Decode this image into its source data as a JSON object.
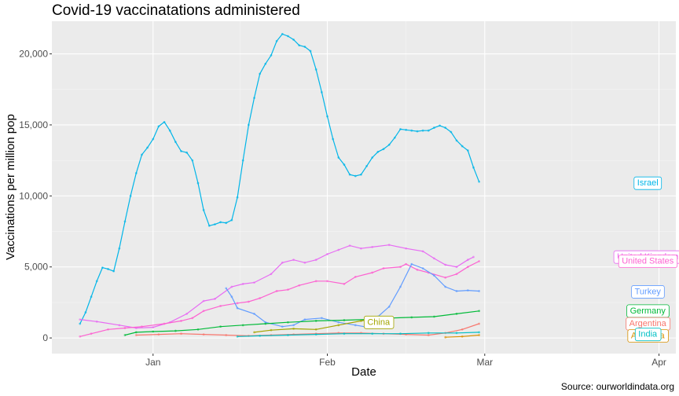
{
  "chart_data": {
    "type": "line",
    "title": "Covid-19 vaccinatations administered",
    "xlabel": "Date",
    "ylabel": "Vaccinations per million pop",
    "caption": "Source: ourworldindata.org",
    "ylim": [
      -1100,
      22300
    ],
    "xlim": [
      "2020-12-14",
      "2021-04-04"
    ],
    "x_ticks": [
      {
        "date": "2021-01-01",
        "label": "Jan"
      },
      {
        "date": "2021-02-01",
        "label": "Feb"
      },
      {
        "date": "2021-03-01",
        "label": "Mar"
      },
      {
        "date": "2021-04-01",
        "label": "Apr"
      }
    ],
    "y_ticks": [
      {
        "value": 0,
        "label": "0"
      },
      {
        "value": 5000,
        "label": "5,000"
      },
      {
        "value": 10000,
        "label": "10,000"
      },
      {
        "value": 15000,
        "label": "15,000"
      },
      {
        "value": 20000,
        "label": "20,000"
      }
    ],
    "grid": true,
    "legend": "none (direct labels)",
    "series": [
      {
        "name": "Israel",
        "color": "#00b5e8",
        "label_y": 10950,
        "points": [
          [
            "2020-12-19",
            1000
          ],
          [
            "2020-12-20",
            1800
          ],
          [
            "2020-12-21",
            2900
          ],
          [
            "2020-12-22",
            4000
          ],
          [
            "2020-12-23",
            4950
          ],
          [
            "2020-12-24",
            4850
          ],
          [
            "2020-12-25",
            4700
          ],
          [
            "2020-12-26",
            6300
          ],
          [
            "2020-12-27",
            8200
          ],
          [
            "2020-12-28",
            10000
          ],
          [
            "2020-12-29",
            11600
          ],
          [
            "2020-12-30",
            12900
          ],
          [
            "2020-12-31",
            13400
          ],
          [
            "2021-01-01",
            14000
          ],
          [
            "2021-01-02",
            14900
          ],
          [
            "2021-01-03",
            15200
          ],
          [
            "2021-01-04",
            14600
          ],
          [
            "2021-01-05",
            13800
          ],
          [
            "2021-01-06",
            13150
          ],
          [
            "2021-01-07",
            13050
          ],
          [
            "2021-01-08",
            12500
          ],
          [
            "2021-01-09",
            10900
          ],
          [
            "2021-01-10",
            9000
          ],
          [
            "2021-01-11",
            7900
          ],
          [
            "2021-01-12",
            8000
          ],
          [
            "2021-01-13",
            8150
          ],
          [
            "2021-01-14",
            8100
          ],
          [
            "2021-01-15",
            8300
          ],
          [
            "2021-01-16",
            9900
          ],
          [
            "2021-01-17",
            12500
          ],
          [
            "2021-01-18",
            15000
          ],
          [
            "2021-01-19",
            16900
          ],
          [
            "2021-01-20",
            18600
          ],
          [
            "2021-01-21",
            19300
          ],
          [
            "2021-01-22",
            19900
          ],
          [
            "2021-01-23",
            20900
          ],
          [
            "2021-01-24",
            21400
          ],
          [
            "2021-01-25",
            21250
          ],
          [
            "2021-01-26",
            21000
          ],
          [
            "2021-01-27",
            20600
          ],
          [
            "2021-01-28",
            20500
          ],
          [
            "2021-01-29",
            20200
          ],
          [
            "2021-01-30",
            18900
          ],
          [
            "2021-01-31",
            17300
          ],
          [
            "2021-02-01",
            15600
          ],
          [
            "2021-02-02",
            14000
          ],
          [
            "2021-02-03",
            12700
          ],
          [
            "2021-02-04",
            12200
          ],
          [
            "2021-02-05",
            11500
          ],
          [
            "2021-02-06",
            11400
          ],
          [
            "2021-02-07",
            11500
          ],
          [
            "2021-02-08",
            12100
          ],
          [
            "2021-02-09",
            12700
          ],
          [
            "2021-02-10",
            13100
          ],
          [
            "2021-02-11",
            13300
          ],
          [
            "2021-02-12",
            13600
          ],
          [
            "2021-02-13",
            14100
          ],
          [
            "2021-02-14",
            14700
          ],
          [
            "2021-02-15",
            14650
          ],
          [
            "2021-02-16",
            14600
          ],
          [
            "2021-02-17",
            14550
          ],
          [
            "2021-02-18",
            14600
          ],
          [
            "2021-02-19",
            14600
          ],
          [
            "2021-02-20",
            14800
          ],
          [
            "2021-02-21",
            14950
          ],
          [
            "2021-02-22",
            14800
          ],
          [
            "2021-02-23",
            14500
          ],
          [
            "2021-02-24",
            13900
          ],
          [
            "2021-02-25",
            13500
          ],
          [
            "2021-02-26",
            13200
          ],
          [
            "2021-02-27",
            12000
          ],
          [
            "2021-02-28",
            11000
          ]
        ]
      },
      {
        "name": "United Kingdom",
        "color": "#e76bf3",
        "label_y": 5750,
        "points": [
          [
            "2020-12-19",
            1300
          ],
          [
            "2020-12-22",
            1150
          ],
          [
            "2020-12-26",
            900
          ],
          [
            "2020-12-29",
            700
          ],
          [
            "2021-01-01",
            750
          ],
          [
            "2021-01-04",
            1100
          ],
          [
            "2021-01-07",
            1700
          ],
          [
            "2021-01-10",
            2600
          ],
          [
            "2021-01-12",
            2750
          ],
          [
            "2021-01-15",
            3600
          ],
          [
            "2021-01-17",
            3800
          ],
          [
            "2021-01-19",
            3900
          ],
          [
            "2021-01-22",
            4500
          ],
          [
            "2021-01-24",
            5300
          ],
          [
            "2021-01-26",
            5500
          ],
          [
            "2021-01-28",
            5300
          ],
          [
            "2021-01-30",
            5500
          ],
          [
            "2021-02-01",
            5900
          ],
          [
            "2021-02-03",
            6200
          ],
          [
            "2021-02-05",
            6500
          ],
          [
            "2021-02-07",
            6300
          ],
          [
            "2021-02-09",
            6400
          ],
          [
            "2021-02-12",
            6550
          ],
          [
            "2021-02-15",
            6300
          ],
          [
            "2021-02-18",
            6100
          ],
          [
            "2021-02-20",
            5600
          ],
          [
            "2021-02-22",
            5150
          ],
          [
            "2021-02-24",
            5000
          ],
          [
            "2021-02-26",
            5500
          ],
          [
            "2021-02-27",
            5700
          ]
        ]
      },
      {
        "name": "United States",
        "color": "#fd61d1",
        "label_y": 5450,
        "points": [
          [
            "2020-12-19",
            100
          ],
          [
            "2020-12-21",
            300
          ],
          [
            "2020-12-24",
            600
          ],
          [
            "2020-12-27",
            700
          ],
          [
            "2020-12-30",
            800
          ],
          [
            "2021-01-03",
            1000
          ],
          [
            "2021-01-06",
            1200
          ],
          [
            "2021-01-08",
            1400
          ],
          [
            "2021-01-10",
            1900
          ],
          [
            "2021-01-13",
            2250
          ],
          [
            "2021-01-16",
            2450
          ],
          [
            "2021-01-18",
            2550
          ],
          [
            "2021-01-20",
            2800
          ],
          [
            "2021-01-23",
            3300
          ],
          [
            "2021-01-25",
            3400
          ],
          [
            "2021-01-27",
            3700
          ],
          [
            "2021-01-30",
            4000
          ],
          [
            "2021-02-01",
            4000
          ],
          [
            "2021-02-04",
            3800
          ],
          [
            "2021-02-06",
            4300
          ],
          [
            "2021-02-09",
            4600
          ],
          [
            "2021-02-11",
            4900
          ],
          [
            "2021-02-14",
            5000
          ],
          [
            "2021-02-15",
            5200
          ],
          [
            "2021-02-17",
            4800
          ],
          [
            "2021-02-19",
            4600
          ],
          [
            "2021-02-22",
            4250
          ],
          [
            "2021-02-24",
            4500
          ],
          [
            "2021-02-26",
            5000
          ],
          [
            "2021-02-28",
            5400
          ]
        ]
      },
      {
        "name": "Turkey",
        "color": "#619cff",
        "label_y": 3300,
        "points": [
          [
            "2021-01-14",
            3500
          ],
          [
            "2021-01-15",
            2900
          ],
          [
            "2021-01-16",
            2100
          ],
          [
            "2021-01-19",
            1700
          ],
          [
            "2021-01-21",
            1100
          ],
          [
            "2021-01-24",
            800
          ],
          [
            "2021-01-26",
            900
          ],
          [
            "2021-01-28",
            1300
          ],
          [
            "2021-01-31",
            1400
          ],
          [
            "2021-02-03",
            1100
          ],
          [
            "2021-02-06",
            900
          ],
          [
            "2021-02-09",
            700
          ],
          [
            "2021-02-10",
            1500
          ],
          [
            "2021-02-12",
            2200
          ],
          [
            "2021-02-14",
            3600
          ],
          [
            "2021-02-16",
            5200
          ],
          [
            "2021-02-18",
            4900
          ],
          [
            "2021-02-20",
            4400
          ],
          [
            "2021-02-22",
            3600
          ],
          [
            "2021-02-24",
            3300
          ],
          [
            "2021-02-26",
            3350
          ],
          [
            "2021-02-28",
            3300
          ]
        ]
      },
      {
        "name": "Germany",
        "color": "#00ba38",
        "label_y": 1950,
        "points": [
          [
            "2020-12-27",
            200
          ],
          [
            "2020-12-29",
            400
          ],
          [
            "2021-01-01",
            450
          ],
          [
            "2021-01-05",
            500
          ],
          [
            "2021-01-09",
            600
          ],
          [
            "2021-01-13",
            800
          ],
          [
            "2021-01-17",
            900
          ],
          [
            "2021-01-21",
            1000
          ],
          [
            "2021-01-25",
            1100
          ],
          [
            "2021-01-30",
            1200
          ],
          [
            "2021-02-04",
            1250
          ],
          [
            "2021-02-08",
            1300
          ],
          [
            "2021-02-12",
            1400
          ],
          [
            "2021-02-16",
            1450
          ],
          [
            "2021-02-20",
            1500
          ],
          [
            "2021-02-24",
            1700
          ],
          [
            "2021-02-28",
            1900
          ]
        ]
      },
      {
        "name": "China",
        "color": "#a3a500",
        "label_y": 1150,
        "points": [
          [
            "2021-01-19",
            400
          ],
          [
            "2021-01-22",
            550
          ],
          [
            "2021-01-26",
            650
          ],
          [
            "2021-01-30",
            600
          ],
          [
            "2021-02-03",
            900
          ],
          [
            "2021-02-07",
            1200
          ],
          [
            "2021-02-09",
            1300
          ]
        ]
      },
      {
        "name": "Argentina",
        "color": "#f8766d",
        "label_y": 1050,
        "points": [
          [
            "2020-12-29",
            200
          ],
          [
            "2021-01-02",
            250
          ],
          [
            "2021-01-06",
            300
          ],
          [
            "2021-01-10",
            250
          ],
          [
            "2021-01-14",
            200
          ],
          [
            "2021-01-18",
            150
          ],
          [
            "2021-01-22",
            200
          ],
          [
            "2021-01-26",
            250
          ],
          [
            "2021-01-30",
            300
          ],
          [
            "2021-02-03",
            350
          ],
          [
            "2021-02-07",
            350
          ],
          [
            "2021-02-11",
            300
          ],
          [
            "2021-02-15",
            250
          ],
          [
            "2021-02-19",
            200
          ],
          [
            "2021-02-22",
            350
          ],
          [
            "2021-02-25",
            600
          ],
          [
            "2021-02-28",
            1000
          ]
        ]
      },
      {
        "name": "Australia",
        "color": "#d89000",
        "label_y": 200,
        "points": [
          [
            "2021-02-22",
            50
          ],
          [
            "2021-02-25",
            100
          ],
          [
            "2021-02-28",
            200
          ]
        ]
      },
      {
        "name": "India",
        "color": "#00bfc4",
        "label_y": 300,
        "points": [
          [
            "2021-01-16",
            100
          ],
          [
            "2021-01-20",
            150
          ],
          [
            "2021-01-25",
            200
          ],
          [
            "2021-01-30",
            250
          ],
          [
            "2021-02-04",
            300
          ],
          [
            "2021-02-09",
            300
          ],
          [
            "2021-02-14",
            300
          ],
          [
            "2021-02-19",
            350
          ],
          [
            "2021-02-24",
            350
          ],
          [
            "2021-02-28",
            400
          ]
        ]
      }
    ]
  }
}
